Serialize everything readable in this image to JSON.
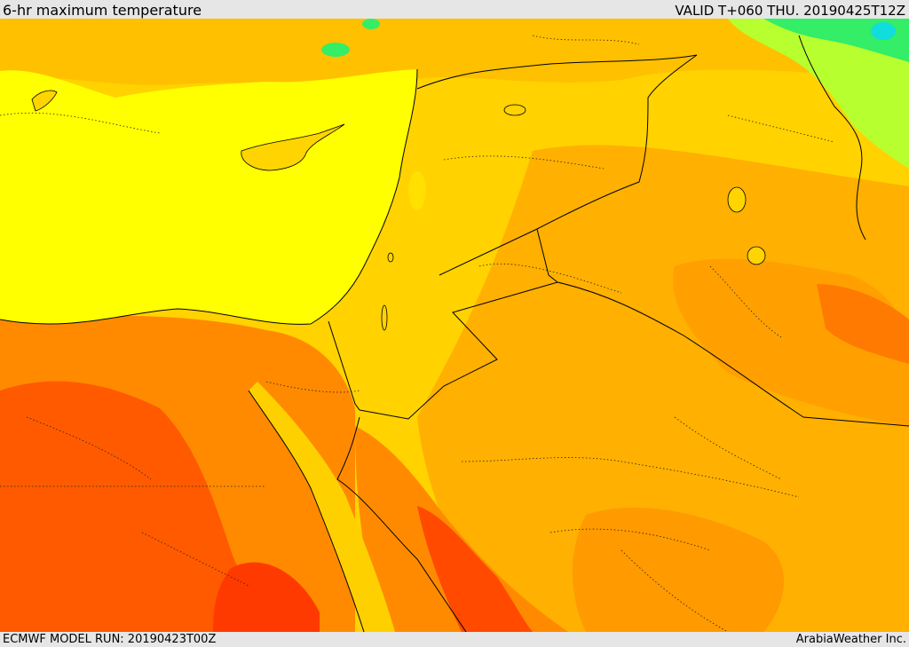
{
  "header": {
    "title": "6-hr maximum temperature",
    "valid": "VALID T+060 THU. 20190425T12Z"
  },
  "footer": {
    "model_run": "ECMWF MODEL RUN: 20190423T00Z",
    "credit": "ArabiaWeather Inc."
  },
  "map": {
    "layer": "6-hr maximum temperature",
    "colors": {
      "sea": "#ffff00",
      "warm_land": "#ffd700",
      "hot_land": "#ffaa00",
      "hotter": "#ff8800",
      "hottest": "#ff5500",
      "extreme": "#ff3300",
      "cool_green": "#aaff33",
      "cold_green": "#33ee66",
      "coldest": "#11dddd",
      "borders": "#000000"
    }
  }
}
